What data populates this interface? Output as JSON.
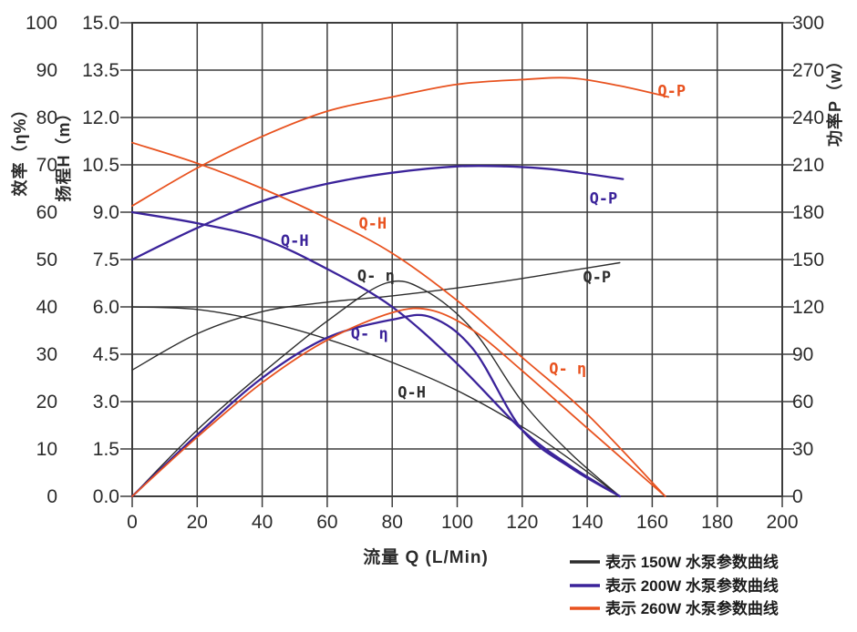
{
  "chart_data": {
    "type": "line",
    "title": "",
    "xlabel": "流量 Q (L/Min)",
    "x": {
      "min": 0,
      "max": 200,
      "ticks": [
        "0",
        "20",
        "40",
        "60",
        "80",
        "100",
        "120",
        "140",
        "160",
        "180",
        "200"
      ]
    },
    "grid": true,
    "axes": [
      {
        "id": "eff",
        "label": "效率（η%）",
        "min": 0,
        "max": 100,
        "side": "outer-left",
        "ticks": [
          "0",
          "10",
          "20",
          "30",
          "40",
          "50",
          "60",
          "70",
          "80",
          "90",
          "100"
        ]
      },
      {
        "id": "head",
        "label": "扬程H（m）",
        "min": 0,
        "max": 15,
        "side": "left",
        "ticks": [
          "0.0",
          "1.5",
          "3.0",
          "4.5",
          "6.0",
          "7.5",
          "9.0",
          "10.5",
          "12.0",
          "13.5",
          "15.0"
        ]
      },
      {
        "id": "power",
        "label": "功率P（w）",
        "min": 0,
        "max": 300,
        "side": "right",
        "ticks": [
          "0",
          "30",
          "60",
          "90",
          "120",
          "150",
          "180",
          "210",
          "240",
          "270",
          "300"
        ]
      }
    ],
    "series": [
      {
        "id": "150w-q-h",
        "pump": "150W",
        "curve": "Q-H",
        "axis": "head",
        "color": "#2d2d2d",
        "width": 1.4,
        "points": [
          [
            0,
            6.0
          ],
          [
            20,
            5.92
          ],
          [
            40,
            5.55
          ],
          [
            60,
            4.98
          ],
          [
            80,
            4.24
          ],
          [
            100,
            3.35
          ],
          [
            120,
            2.2
          ],
          [
            135,
            1.15
          ],
          [
            150,
            0
          ]
        ],
        "label": {
          "text": "Q-H",
          "q": 86,
          "v": 3.3
        }
      },
      {
        "id": "150w-q-p",
        "pump": "150W",
        "curve": "Q-P",
        "axis": "power",
        "color": "#2d2d2d",
        "width": 1.4,
        "points": [
          [
            0,
            80
          ],
          [
            20,
            103
          ],
          [
            40,
            117
          ],
          [
            60,
            123
          ],
          [
            80,
            127
          ],
          [
            100,
            132
          ],
          [
            120,
            138
          ],
          [
            135,
            143
          ],
          [
            150,
            148
          ]
        ],
        "label": {
          "text": "Q-P",
          "q": 143,
          "v": 139
        }
      },
      {
        "id": "150w-q-eta",
        "pump": "150W",
        "curve": "Q-η",
        "axis": "eff",
        "color": "#2d2d2d",
        "width": 1.4,
        "points": [
          [
            0,
            0
          ],
          [
            20,
            14
          ],
          [
            40,
            26
          ],
          [
            60,
            37
          ],
          [
            78,
            45
          ],
          [
            90,
            43.5
          ],
          [
            105,
            35
          ],
          [
            120,
            20
          ],
          [
            135,
            9
          ],
          [
            150,
            0
          ]
        ],
        "label": {
          "text": "Q- η",
          "q": 75,
          "v": 46.6
        }
      },
      {
        "id": "200w-q-h",
        "pump": "200W",
        "curve": "Q-H",
        "axis": "head",
        "color": "#3b239a",
        "width": 2.3,
        "points": [
          [
            0,
            9.0
          ],
          [
            20,
            8.65
          ],
          [
            40,
            8.16
          ],
          [
            60,
            7.2
          ],
          [
            80,
            6.0
          ],
          [
            100,
            4.2
          ],
          [
            120,
            2.1
          ],
          [
            135,
            0.95
          ],
          [
            150,
            0
          ]
        ],
        "label": {
          "text": "Q-H",
          "q": 50,
          "v": 8.1
        }
      },
      {
        "id": "200w-q-p",
        "pump": "200W",
        "curve": "Q-P",
        "axis": "power",
        "color": "#3b239a",
        "width": 2.3,
        "points": [
          [
            0,
            150
          ],
          [
            20,
            170
          ],
          [
            40,
            187
          ],
          [
            60,
            198
          ],
          [
            80,
            205
          ],
          [
            100,
            209
          ],
          [
            115,
            209
          ],
          [
            130,
            207
          ],
          [
            151,
            201
          ]
        ],
        "label": {
          "text": "Q-P",
          "q": 145,
          "v": 189
        }
      },
      {
        "id": "200w-q-eta",
        "pump": "200W",
        "curve": "Q-η",
        "axis": "eff",
        "color": "#3b239a",
        "width": 2.3,
        "points": [
          [
            0,
            0
          ],
          [
            20,
            13
          ],
          [
            40,
            25
          ],
          [
            60,
            33.5
          ],
          [
            80,
            37.3
          ],
          [
            92,
            37.8
          ],
          [
            105,
            31
          ],
          [
            120,
            14
          ],
          [
            135,
            6
          ],
          [
            150,
            0
          ]
        ],
        "label": {
          "text": "Q- η",
          "q": 73,
          "v": 34.4
        }
      },
      {
        "id": "260w-q-h",
        "pump": "260W",
        "curve": "Q-H",
        "axis": "head",
        "color": "#e8521f",
        "width": 1.8,
        "points": [
          [
            0,
            11.2
          ],
          [
            20,
            10.55
          ],
          [
            40,
            9.75
          ],
          [
            60,
            8.8
          ],
          [
            80,
            7.7
          ],
          [
            100,
            6.2
          ],
          [
            120,
            4.4
          ],
          [
            140,
            2.6
          ],
          [
            164,
            0
          ]
        ],
        "label": {
          "text": "Q-H",
          "q": 74,
          "v": 8.65
        }
      },
      {
        "id": "260w-q-p",
        "pump": "260W",
        "curve": "Q-P",
        "axis": "power",
        "color": "#e8521f",
        "width": 1.8,
        "points": [
          [
            0,
            184
          ],
          [
            20,
            208
          ],
          [
            40,
            228
          ],
          [
            60,
            244
          ],
          [
            80,
            253
          ],
          [
            100,
            261
          ],
          [
            120,
            264
          ],
          [
            135,
            265
          ],
          [
            150,
            260
          ],
          [
            165,
            253
          ]
        ],
        "label": {
          "text": "Q-P",
          "q": 166,
          "v": 257
        }
      },
      {
        "id": "260w-q-eta",
        "pump": "260W",
        "curve": "Q-η",
        "axis": "eff",
        "color": "#e8521f",
        "width": 1.8,
        "points": [
          [
            0,
            0
          ],
          [
            20,
            12.5
          ],
          [
            40,
            24
          ],
          [
            60,
            33
          ],
          [
            80,
            38.8
          ],
          [
            92,
            39.3
          ],
          [
            105,
            35
          ],
          [
            120,
            26.5
          ],
          [
            140,
            14.4
          ],
          [
            164,
            0
          ]
        ],
        "label": {
          "text": "Q- η",
          "q": 134,
          "v": 27
        }
      }
    ],
    "legend": {
      "position": "bottom-right",
      "items": [
        {
          "label": "表示 150W 水泵参数曲线",
          "color": "#2d2d2d"
        },
        {
          "label": "表示 200W 水泵参数曲线",
          "color": "#3b239a"
        },
        {
          "label": "表示 260W 水泵参数曲线",
          "color": "#e8521f"
        }
      ]
    },
    "colors": {
      "grid": "#3c3c3c",
      "text": "#2b2b2b",
      "background": "#ffffff"
    }
  }
}
